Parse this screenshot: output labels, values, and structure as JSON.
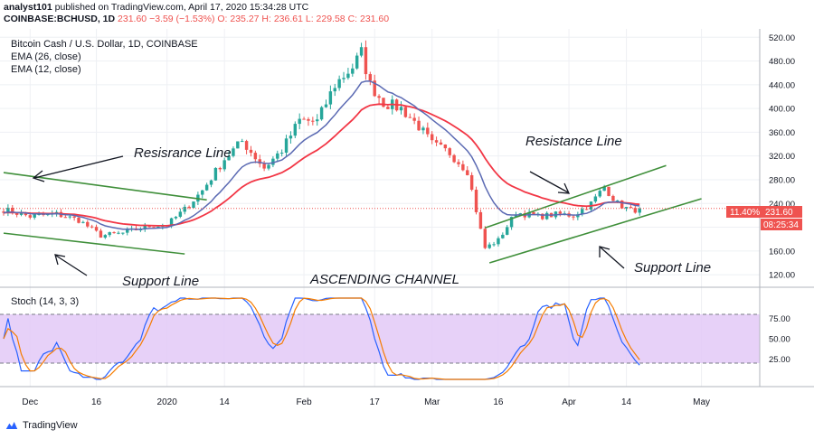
{
  "header": {
    "line1_user": "analyst101",
    "line1_rest": "published on TradingView.com, April 17, 2020 15:34:28 UTC",
    "symbol": "COINBASE:BCHUSD, 1D",
    "last": "231.60",
    "change": "−3.59 (−1.53%)",
    "ohlc": "O: 235.27 H: 236.61 L: 229.58 C: 231.60"
  },
  "legend": {
    "title": "Bitcoin Cash / U.S. Dollar, 1D, COINBASE",
    "ema26": "EMA (26, close)",
    "ema12": "EMA (12, close)"
  },
  "annotations": {
    "resistance_left": "Resisrance Line",
    "support_left": "Support Line",
    "resistance_right": "Resistance Line",
    "support_right": "Support Line",
    "channel": "ASCENDING CHANNEL"
  },
  "badges": {
    "percent": "11.40%",
    "price": "231.60",
    "timer": "08:25:34"
  },
  "stoch": {
    "title": "Stoch (14, 3, 3)",
    "levels": [
      75,
      50,
      25
    ],
    "level_labels": [
      "75.00",
      "50.00",
      "25.00"
    ],
    "overbought": 80,
    "oversold": 20
  },
  "footer": {
    "brand": "TradingView"
  },
  "colors": {
    "up": "#26a69a",
    "down": "#ef5350",
    "ema26": "#f23645",
    "ema12": "#5b6ab3",
    "trend": "#3f8f3a",
    "stoch_band": "#e3c9f7",
    "stoch_k": "#2962ff",
    "stoch_d": "#f57c00"
  },
  "chart_data": {
    "type": "candlestick",
    "title": "Bitcoin Cash / U.S. Dollar, 1D, COINBASE",
    "ylim": [
      108,
      528
    ],
    "y_ticks": [
      120,
      160,
      200,
      240,
      280,
      320,
      360,
      400,
      440,
      480,
      520
    ],
    "y_tick_labels": [
      "120.00",
      "160.00",
      "200.00",
      "240.00",
      "280.00",
      "320.00",
      "360.00",
      "400.00",
      "440.00",
      "480.00",
      "520.00"
    ],
    "x_range": [
      "2019-11-25",
      "2020-05-06"
    ],
    "x_ticks": [
      {
        "date": "2019-12-01",
        "label": "Dec"
      },
      {
        "date": "2019-12-16",
        "label": "16"
      },
      {
        "date": "2020-01-01",
        "label": "2020"
      },
      {
        "date": "2020-01-14",
        "label": "14"
      },
      {
        "date": "2020-02-01",
        "label": "Feb"
      },
      {
        "date": "2020-02-17",
        "label": "17"
      },
      {
        "date": "2020-03-01",
        "label": "Mar"
      },
      {
        "date": "2020-03-16",
        "label": "16"
      },
      {
        "date": "2020-04-01",
        "label": "Apr"
      },
      {
        "date": "2020-04-14",
        "label": "14"
      },
      {
        "date": "2020-05-01",
        "label": "May"
      }
    ],
    "price_anchors": [
      [
        "2019-11-25",
        230
      ],
      [
        "2019-12-01",
        218
      ],
      [
        "2019-12-07",
        222
      ],
      [
        "2019-12-12",
        212
      ],
      [
        "2019-12-17",
        186
      ],
      [
        "2019-12-22",
        190
      ],
      [
        "2019-12-28",
        202
      ],
      [
        "2020-01-01",
        204
      ],
      [
        "2020-01-05",
        230
      ],
      [
        "2020-01-09",
        262
      ],
      [
        "2020-01-14",
        315
      ],
      [
        "2020-01-18",
        345
      ],
      [
        "2020-01-23",
        300
      ],
      [
        "2020-01-27",
        330
      ],
      [
        "2020-01-31",
        380
      ],
      [
        "2020-02-04",
        378
      ],
      [
        "2020-02-08",
        440
      ],
      [
        "2020-02-12",
        470
      ],
      [
        "2020-02-14",
        494
      ],
      [
        "2020-02-16",
        440
      ],
      [
        "2020-02-19",
        410
      ],
      [
        "2020-02-23",
        400
      ],
      [
        "2020-02-27",
        370
      ],
      [
        "2020-03-01",
        340
      ],
      [
        "2020-03-05",
        325
      ],
      [
        "2020-03-09",
        295
      ],
      [
        "2020-03-12",
        195
      ],
      [
        "2020-03-13",
        165
      ],
      [
        "2020-03-16",
        178
      ],
      [
        "2020-03-20",
        225
      ],
      [
        "2020-03-25",
        218
      ],
      [
        "2020-03-30",
        222
      ],
      [
        "2020-04-02",
        220
      ],
      [
        "2020-04-06",
        240
      ],
      [
        "2020-04-09",
        268
      ],
      [
        "2020-04-12",
        240
      ],
      [
        "2020-04-15",
        228
      ],
      [
        "2020-04-17",
        231.6
      ]
    ],
    "last_price": 231.6,
    "trend_lines": [
      {
        "name": "Resisrance Line",
        "from": [
          "2019-11-25",
          292
        ],
        "to": [
          "2020-01-10",
          246
        ]
      },
      {
        "name": "Support Line",
        "from": [
          "2019-11-25",
          190
        ],
        "to": [
          "2020-01-05",
          155
        ]
      },
      {
        "name": "Resistance Line",
        "from": [
          "2020-03-13",
          199
        ],
        "to": [
          "2020-04-23",
          304
        ]
      },
      {
        "name": "Support Line",
        "from": [
          "2020-03-14",
          140
        ],
        "to": [
          "2020-05-01",
          248
        ]
      }
    ],
    "stoch_range": [
      0,
      100
    ]
  }
}
